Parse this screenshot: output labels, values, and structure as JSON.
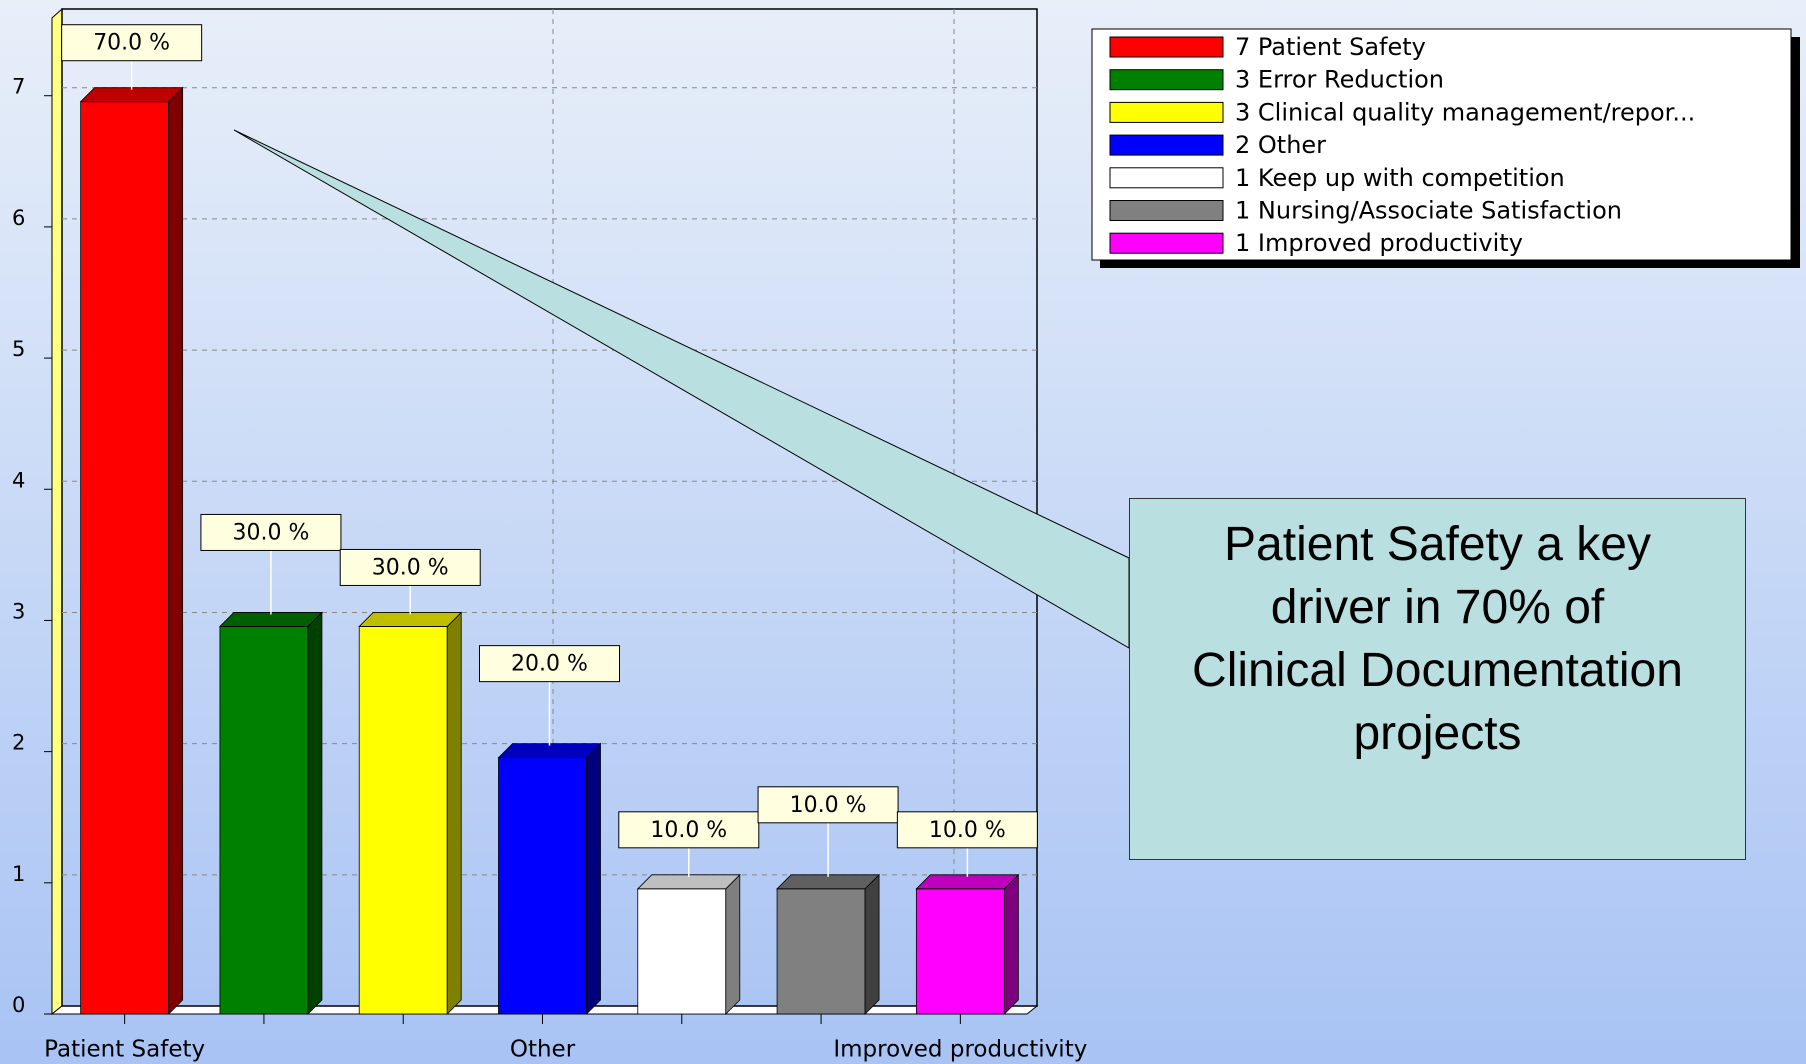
{
  "chart_data": {
    "type": "bar",
    "categories": [
      "Patient Safety",
      null,
      null,
      "Other",
      null,
      null,
      "Improved productivity"
    ],
    "values": [
      7,
      3,
      3,
      2,
      1,
      1,
      1
    ],
    "percents": [
      70,
      30,
      30,
      20,
      10,
      10,
      10
    ],
    "percent_labels": [
      "70.0 %",
      "30.0 %",
      "30.0 %",
      "20.0 %",
      "10.0 %",
      "10.0 %",
      "10.0 %"
    ],
    "colors": [
      "#ff0000",
      "#008000",
      "#ffff00",
      "#0000ff",
      "#ffffff",
      "#808080",
      "#ff00ff"
    ],
    "legend": [
      "7 Patient Safety",
      "3 Error Reduction",
      "3 Clinical quality management/repor...",
      "2 Other",
      "1 Keep up with competition",
      "1 Nursing/Associate Satisfaction",
      "1 Improved productivity"
    ],
    "ylim": [
      0,
      7.6
    ],
    "yticks": [
      0,
      1,
      2,
      3,
      4,
      5,
      6,
      7
    ],
    "grid": true,
    "legend_position": "upper right",
    "annotation": "Patient Safety a key driver in 70% of Clinical Documentation projects"
  }
}
